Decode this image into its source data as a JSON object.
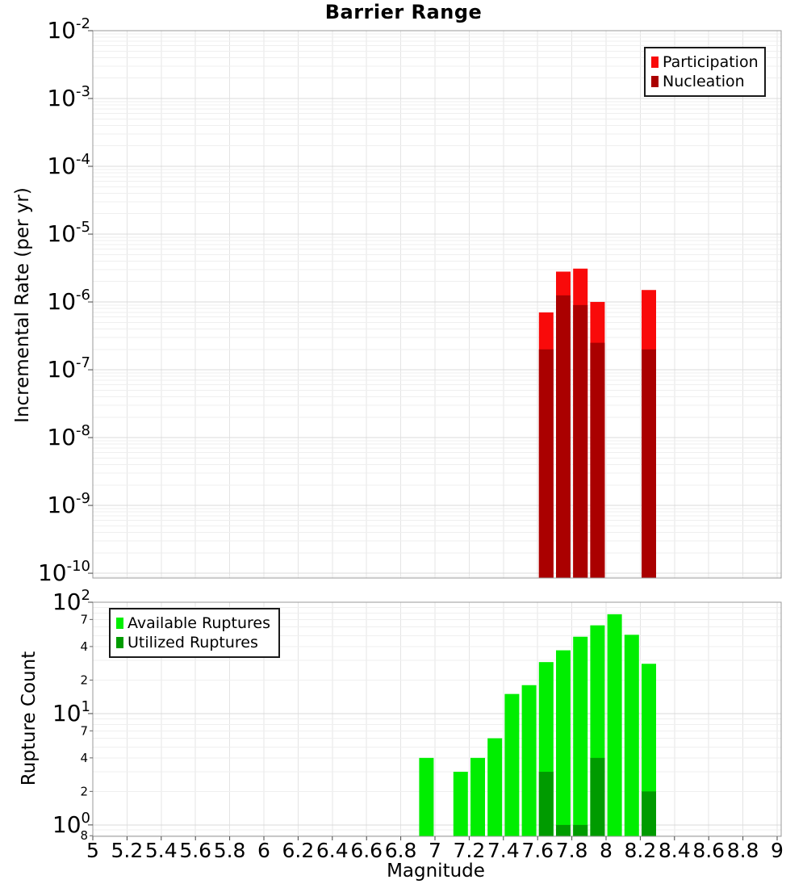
{
  "title": "Barrier Range",
  "axes": {
    "x_label": "Magnitude",
    "x_ticks": [
      5,
      5.2,
      5.4,
      5.6,
      5.8,
      6,
      6.2,
      6.4,
      6.6,
      6.8,
      7,
      7.2,
      7.4,
      7.6,
      7.8,
      8,
      8.2,
      8.4,
      8.6,
      8.8,
      9
    ]
  },
  "colors": {
    "participation": "#F90A0A",
    "nucleation": "#AA0000",
    "available": "#00EE00",
    "utilized": "#009B00",
    "frame": "#9A9A9A",
    "grid_major": "#DBDBDB",
    "grid_minor": "#EFEFEF",
    "background": "#FFFFFF"
  },
  "legend_top": {
    "items": [
      {
        "label": "Participation",
        "color": "#F90A0A"
      },
      {
        "label": "Nucleation",
        "color": "#AA0000"
      }
    ]
  },
  "legend_bottom": {
    "items": [
      {
        "label": "Available Ruptures",
        "color": "#00EE00"
      },
      {
        "label": "Utilized Ruptures",
        "color": "#009B00"
      }
    ]
  },
  "chart_data": [
    {
      "type": "bar",
      "panel": "incremental-rate",
      "title": "Barrier Range",
      "xlabel": "",
      "ylabel": "Incremental Rate (per yr)",
      "yscale": "log",
      "grid": true,
      "legend_position": "top-right",
      "xlim": [
        5,
        9.02
      ],
      "ylim": [
        8.5e-11,
        0.01
      ],
      "y_major_exponents": [
        -2,
        -3,
        -4,
        -5,
        -6,
        -7,
        -8,
        -9,
        -10
      ],
      "bin_width": 0.1,
      "categories": [
        7.65,
        7.75,
        7.85,
        7.95,
        8.25
      ],
      "series": [
        {
          "name": "Participation",
          "color": "#F90A0A",
          "values": [
            7e-07,
            2.8e-06,
            3.1e-06,
            1e-06,
            1.5e-06
          ]
        },
        {
          "name": "Nucleation",
          "color": "#AA0000",
          "values": [
            2e-07,
            1.25e-06,
            9e-07,
            2.5e-07,
            2e-07
          ]
        }
      ]
    },
    {
      "type": "bar",
      "panel": "rupture-count",
      "title": "",
      "xlabel": "Magnitude",
      "ylabel": "Rupture Count",
      "yscale": "log",
      "grid": true,
      "legend_position": "top-left",
      "xlim": [
        5,
        9.02
      ],
      "ylim": [
        0.79,
        100
      ],
      "y_major_exponents": [
        2,
        1,
        0
      ],
      "y_minor_tick_labels": [
        {
          "value": 70,
          "label": "7"
        },
        {
          "value": 40,
          "label": "4"
        },
        {
          "value": 20,
          "label": "2"
        },
        {
          "value": 7,
          "label": "7"
        },
        {
          "value": 4,
          "label": "4"
        },
        {
          "value": 2,
          "label": "2"
        },
        {
          "value": 0.8,
          "label": "8"
        }
      ],
      "bin_width": 0.1,
      "categories": [
        6.95,
        7.15,
        7.25,
        7.35,
        7.45,
        7.55,
        7.65,
        7.75,
        7.85,
        7.95,
        8.05,
        8.15,
        8.25
      ],
      "series": [
        {
          "name": "Available Ruptures",
          "color": "#00EE00",
          "values": [
            4,
            3,
            4,
            6,
            15,
            18,
            29,
            37,
            49,
            62,
            78,
            51,
            28
          ]
        },
        {
          "name": "Utilized Ruptures",
          "color": "#009B00",
          "values": [
            0,
            0,
            0,
            0,
            0,
            0,
            3,
            1,
            1,
            4,
            0,
            0,
            2
          ]
        }
      ]
    }
  ]
}
